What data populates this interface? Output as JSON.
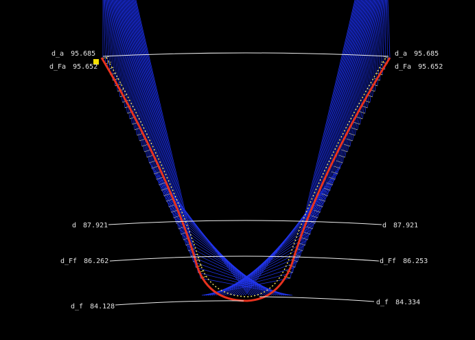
{
  "left_labels": [
    {
      "name": "d_a",
      "value": 95.685
    },
    {
      "name": "d_Fa",
      "value": 95.652
    },
    {
      "name": "d",
      "value": 87.921
    },
    {
      "name": "d_Ff",
      "value": 86.262
    },
    {
      "name": "d_f",
      "value": 84.128
    }
  ],
  "right_labels": [
    {
      "name": "d_a",
      "value": 95.685
    },
    {
      "name": "d_Fa",
      "value": 95.652
    },
    {
      "name": "d",
      "value": 87.921
    },
    {
      "name": "d_Ff",
      "value": 86.253
    },
    {
      "name": "d_f",
      "value": 84.334
    }
  ]
}
